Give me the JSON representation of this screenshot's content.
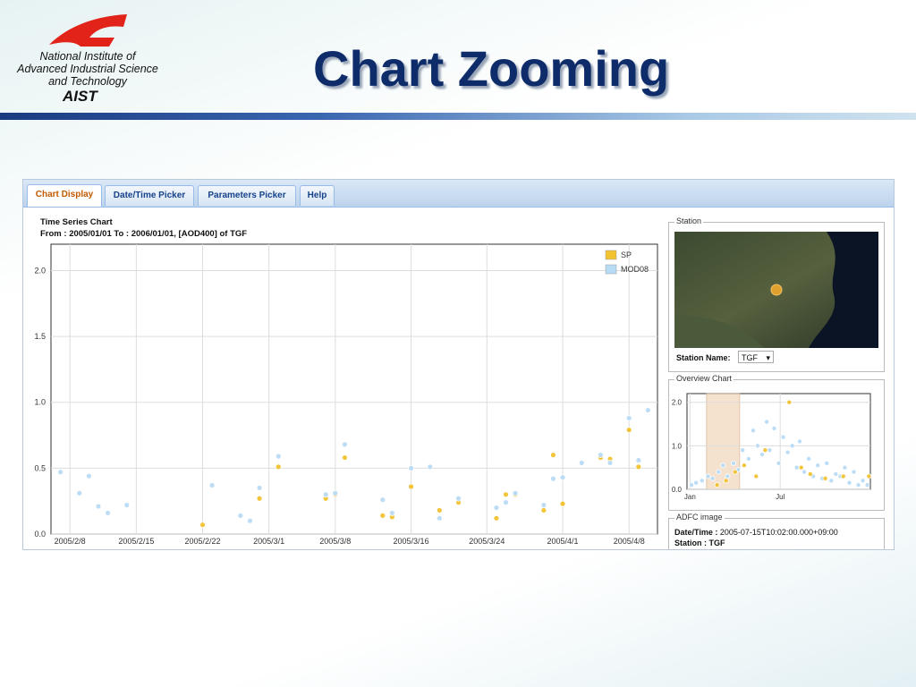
{
  "header": {
    "org_lines": [
      "National Institute of",
      "Advanced Industrial Science",
      "and Technology"
    ],
    "org_short": "AIST",
    "title": "Chart Zooming"
  },
  "tabs": [
    "Chart Display",
    "Date/Time Picker",
    "Parameters Picker",
    "Help"
  ],
  "station_panel": {
    "legend": "Station",
    "name_label": "Station Name:",
    "name_value": "TGF"
  },
  "adfc_panel": {
    "legend": "ADFC image",
    "datetime_label": "Date/Time :",
    "datetime_value": "2005-07-15T10:02:00.000+09:00",
    "station_label": "Station :",
    "station_value": "TGF"
  },
  "chart_data": [
    {
      "type": "scatter",
      "title": "Time Series Chart",
      "subtitle": "From : 2005/01/01 To : 2006/01/01, [AOD400] of TGF",
      "xlim": [
        "2005/2/6",
        "2005/4/11"
      ],
      "xticks": [
        "2005/2/8",
        "2005/2/15",
        "2005/2/22",
        "2005/3/1",
        "2005/3/8",
        "2005/3/16",
        "2005/3/24",
        "2005/4/1",
        "2005/4/8"
      ],
      "ylim": [
        0,
        2.2
      ],
      "yticks": [
        {
          "value": 0,
          "label": "0.0"
        },
        {
          "value": 0.5,
          "label": "0.5"
        },
        {
          "value": 1,
          "label": "1.0"
        },
        {
          "value": 1.5,
          "label": "1.5"
        },
        {
          "value": 2,
          "label": "2.0"
        }
      ],
      "grid": true,
      "legend": "top-right",
      "series": [
        {
          "name": "SP",
          "color": "#f2c230",
          "x": [
            "2005/2/22",
            "2005/2/28",
            "2005/3/2",
            "2005/3/7",
            "2005/3/8",
            "2005/3/9",
            "2005/3/13",
            "2005/3/14",
            "2005/3/16",
            "2005/3/19",
            "2005/3/21",
            "2005/3/25",
            "2005/3/26",
            "2005/3/27",
            "2005/3/30",
            "2005/3/31",
            "2005/4/1",
            "2005/4/5",
            "2005/4/6",
            "2005/4/8",
            "2005/4/9"
          ],
          "values": [
            0.07,
            0.27,
            0.51,
            0.27,
            0.3,
            0.58,
            0.14,
            0.13,
            0.36,
            0.18,
            0.24,
            0.12,
            0.3,
            0.3,
            0.18,
            0.6,
            0.23,
            0.58,
            0.57,
            0.79,
            0.51
          ]
        },
        {
          "name": "MOD08",
          "color": "#b9dcf5",
          "x": [
            "2005/2/7",
            "2005/2/9",
            "2005/2/10",
            "2005/2/11",
            "2005/2/12",
            "2005/2/14",
            "2005/2/23",
            "2005/2/26",
            "2005/2/27",
            "2005/2/28",
            "2005/3/2",
            "2005/3/7",
            "2005/3/8",
            "2005/3/9",
            "2005/3/13",
            "2005/3/14",
            "2005/3/16",
            "2005/3/18",
            "2005/3/19",
            "2005/3/21",
            "2005/3/25",
            "2005/3/26",
            "2005/3/27",
            "2005/3/30",
            "2005/3/31",
            "2005/4/1",
            "2005/4/3",
            "2005/4/5",
            "2005/4/6",
            "2005/4/8",
            "2005/4/9",
            "2005/4/10"
          ],
          "values": [
            0.47,
            0.31,
            0.44,
            0.21,
            0.16,
            0.22,
            0.37,
            0.14,
            0.1,
            0.35,
            0.59,
            0.3,
            0.31,
            0.68,
            0.26,
            0.16,
            0.5,
            0.51,
            0.12,
            0.27,
            0.2,
            0.24,
            0.31,
            0.22,
            0.42,
            0.43,
            0.54,
            0.6,
            0.54,
            0.88,
            0.56,
            0.94
          ]
        }
      ]
    },
    {
      "type": "scatter",
      "title": "Overview Chart",
      "xlim": [
        0.8,
        13
      ],
      "xticks": [
        {
          "value": 1,
          "label": "Jan"
        },
        {
          "value": 7,
          "label": "Jul"
        }
      ],
      "ylim": [
        0,
        2.2
      ],
      "yticks": [
        {
          "value": 0,
          "label": "0.0"
        },
        {
          "value": 1,
          "label": "1.0"
        },
        {
          "value": 2,
          "label": "2.0"
        }
      ],
      "grid": true,
      "zoom": [
        2.1,
        4.3
      ],
      "series": [
        {
          "color": "#b9dcf5",
          "x": [
            1.1,
            1.4,
            1.8,
            2.2,
            2.5,
            2.9,
            3.2,
            3.5,
            3.9,
            4.2,
            4.5,
            4.9,
            5.2,
            5.5,
            5.8,
            6.1,
            6.3,
            6.6,
            6.9,
            7.2,
            7.5,
            7.8,
            8.1,
            8.3,
            8.6,
            8.9,
            9.2,
            9.5,
            9.8,
            10.1,
            10.4,
            10.7,
            11.0,
            11.3,
            11.6,
            11.9,
            12.2,
            12.5,
            12.8
          ],
          "values": [
            0.1,
            0.15,
            0.2,
            0.3,
            0.25,
            0.4,
            0.55,
            0.3,
            0.6,
            0.45,
            0.9,
            0.7,
            1.35,
            1.0,
            0.8,
            1.55,
            0.9,
            1.4,
            0.6,
            1.2,
            0.85,
            1.0,
            0.5,
            1.1,
            0.4,
            0.7,
            0.3,
            0.55,
            0.25,
            0.6,
            0.2,
            0.35,
            0.3,
            0.5,
            0.15,
            0.4,
            0.1,
            0.2,
            0.1
          ]
        },
        {
          "color": "#f2c230",
          "x": [
            2.8,
            3.4,
            4.0,
            4.6,
            5.4,
            6.0,
            7.6,
            8.4,
            9.0,
            10.0,
            11.2,
            12.9
          ],
          "values": [
            0.1,
            0.2,
            0.4,
            0.55,
            0.3,
            0.9,
            2.0,
            0.5,
            0.35,
            0.25,
            0.3,
            0.3
          ]
        }
      ]
    }
  ]
}
